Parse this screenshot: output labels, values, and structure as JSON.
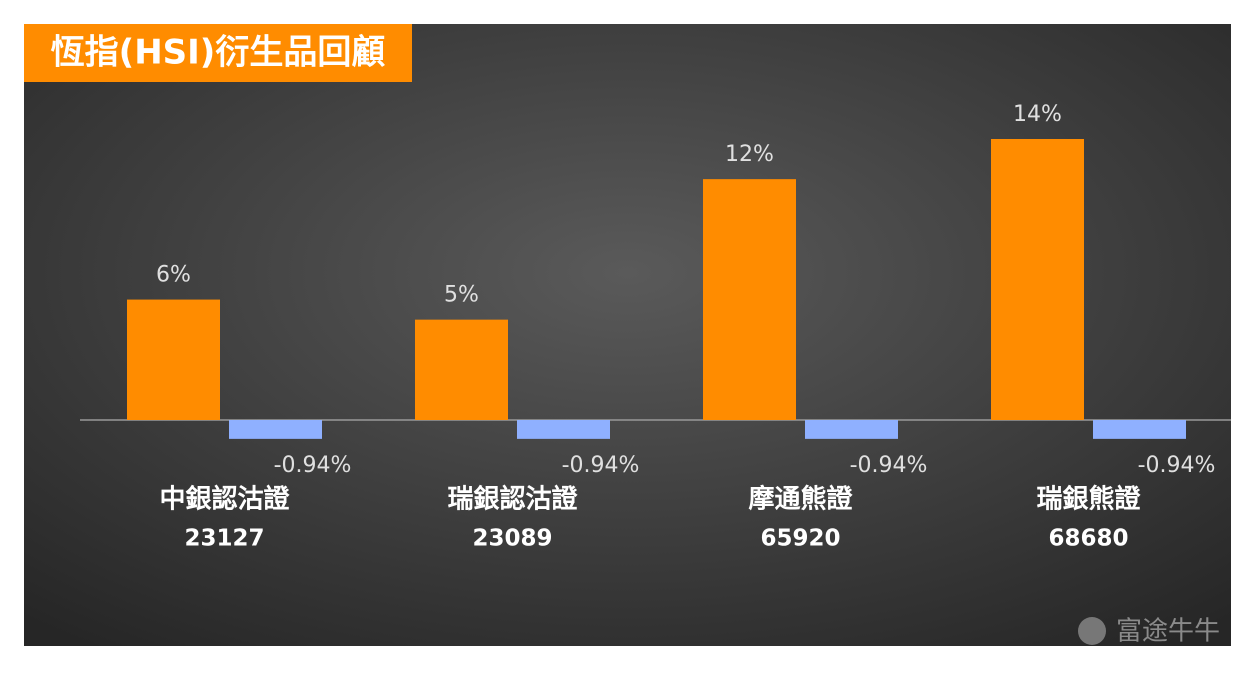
{
  "chart_data": {
    "type": "bar",
    "title": "恆指(HSI)衍生品回顧",
    "categories": [
      [
        "中銀認沽證",
        "23127"
      ],
      [
        "瑞銀認沽證",
        "23089"
      ],
      [
        "摩通熊證",
        "65920"
      ],
      [
        "瑞銀熊證",
        "68680"
      ]
    ],
    "series": [
      {
        "color": "#ff8c00",
        "values": [
          6,
          5,
          12,
          14
        ],
        "value_labels": [
          "6%",
          "5%",
          "12%",
          "14%"
        ]
      },
      {
        "color": "#8fb0ff",
        "values": [
          -0.94,
          -0.94,
          -0.94,
          -0.94
        ],
        "value_labels": [
          "-0.94%",
          "-0.94%",
          "-0.94%",
          "-0.94%"
        ]
      }
    ],
    "watermark": "富途牛牛"
  }
}
